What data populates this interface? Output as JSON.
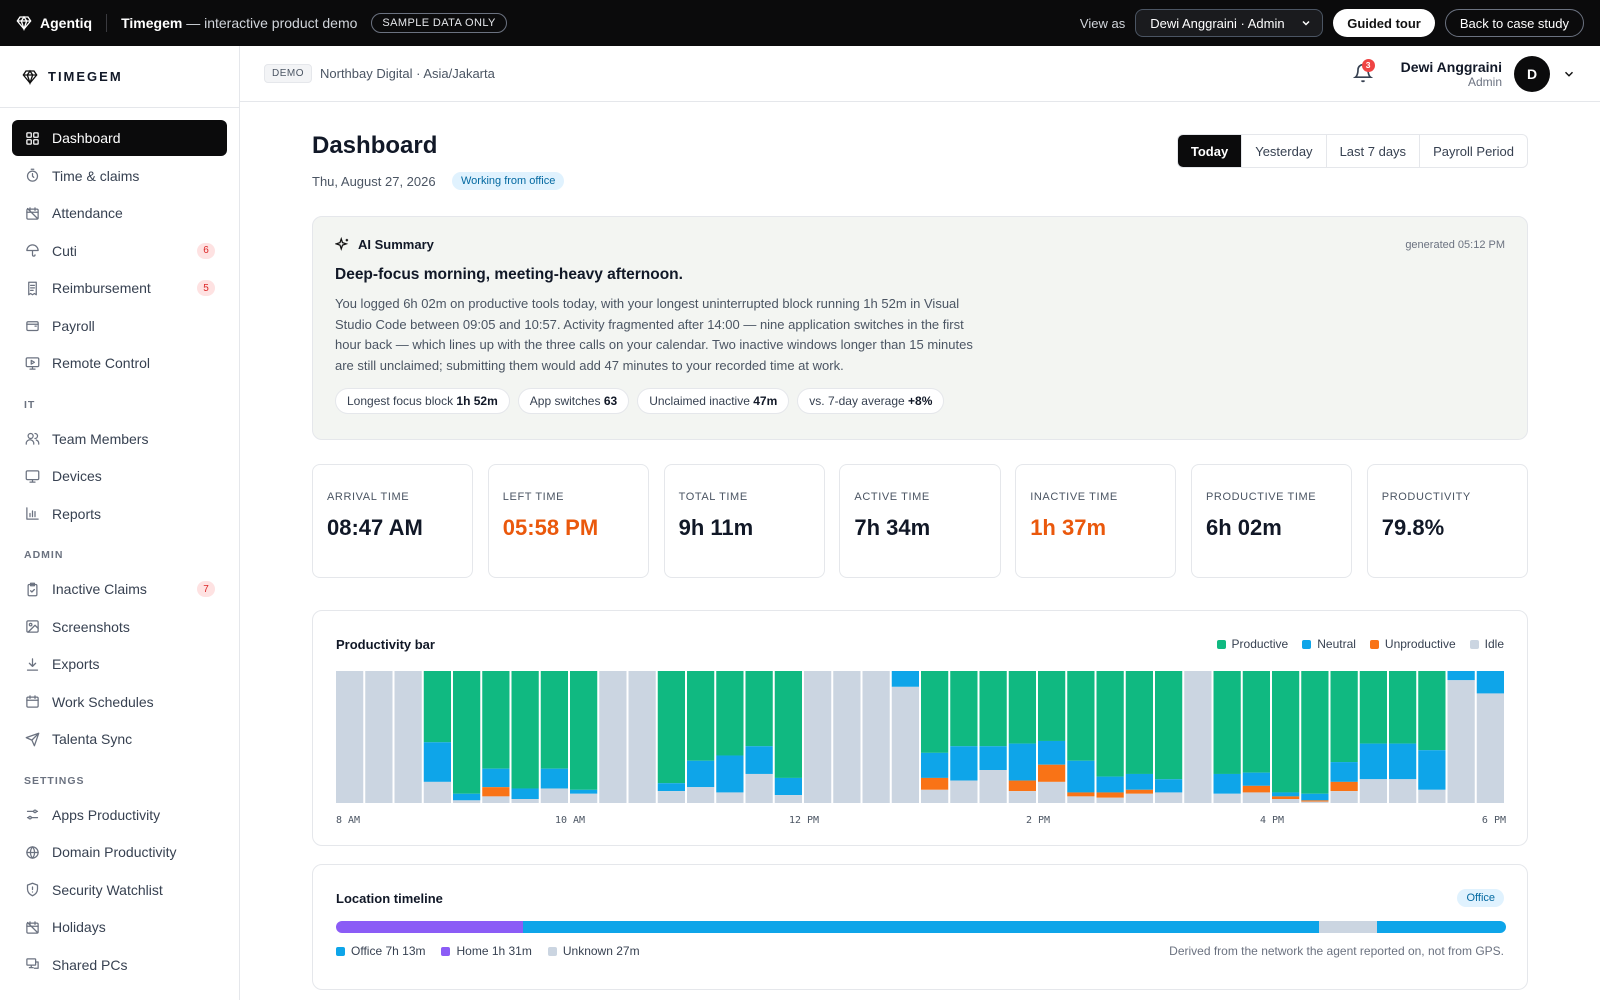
{
  "topbar": {
    "brand": "Agentiq",
    "demo_title_bold": "Timegem",
    "demo_title_rest": " — interactive product demo",
    "sample_pill": "SAMPLE DATA ONLY",
    "view_as_label": "View as",
    "view_as_value": "Dewi Anggraini · Admin",
    "guided_tour": "Guided tour",
    "back": "Back to case study"
  },
  "sidebar": {
    "logo": "TIMEGEM",
    "main_items": [
      {
        "label": "Dashboard",
        "icon": "grid-icon",
        "active": true
      },
      {
        "label": "Time & claims",
        "icon": "stopwatch-icon"
      },
      {
        "label": "Attendance",
        "icon": "calendar-off-icon"
      },
      {
        "label": "Cuti",
        "icon": "umbrella-icon",
        "badge": "6"
      },
      {
        "label": "Reimbursement",
        "icon": "receipt-icon",
        "badge": "5"
      },
      {
        "label": "Payroll",
        "icon": "wallet-icon"
      },
      {
        "label": "Remote Control",
        "icon": "monitor-play-icon"
      }
    ],
    "it_label": "IT",
    "it_items": [
      {
        "label": "Team Members",
        "icon": "users-icon"
      },
      {
        "label": "Devices",
        "icon": "monitor-icon"
      },
      {
        "label": "Reports",
        "icon": "chart-icon"
      }
    ],
    "admin_label": "ADMIN",
    "admin_items": [
      {
        "label": "Inactive Claims",
        "icon": "clipboard-check-icon",
        "badge": "7"
      },
      {
        "label": "Screenshots",
        "icon": "image-icon"
      },
      {
        "label": "Exports",
        "icon": "download-icon"
      },
      {
        "label": "Work Schedules",
        "icon": "calendar-icon"
      },
      {
        "label": "Talenta Sync",
        "icon": "send-icon"
      }
    ],
    "settings_label": "SETTINGS",
    "settings_items": [
      {
        "label": "Apps Productivity",
        "icon": "sliders-icon"
      },
      {
        "label": "Domain Productivity",
        "icon": "globe-icon"
      },
      {
        "label": "Security Watchlist",
        "icon": "shield-icon"
      },
      {
        "label": "Holidays",
        "icon": "calendar-off-icon"
      },
      {
        "label": "Shared PCs",
        "icon": "shared-pc-icon"
      }
    ]
  },
  "header": {
    "demo_chip": "DEMO",
    "org": "Northbay Digital · Asia/Jakarta",
    "notifications": "3",
    "user_name": "Dewi Anggraini",
    "user_role": "Admin",
    "avatar": "D"
  },
  "page": {
    "title": "Dashboard",
    "date": "Thu, August 27, 2026",
    "status": "Working from office",
    "ranges": [
      "Today",
      "Yesterday",
      "Last 7 days",
      "Payroll Period"
    ],
    "active_range": 0
  },
  "ai": {
    "heading": "AI Summary",
    "generated": "generated 05:12 PM",
    "title": "Deep-focus morning, meeting-heavy afternoon.",
    "body": "You logged 6h 02m on productive tools today, with your longest uninterrupted block running 1h 52m in Visual Studio Code between 09:05 and 10:57. Activity fragmented after 14:00 — nine application switches in the first hour back — which lines up with the three calls on your calendar. Two inactive windows longer than 15 minutes are still unclaimed; submitting them would add 47 minutes to your recorded time at work.",
    "chips": [
      {
        "label": "Longest focus block",
        "value": "1h 52m"
      },
      {
        "label": "App switches",
        "value": "63"
      },
      {
        "label": "Unclaimed inactive",
        "value": "47m"
      },
      {
        "label": "vs. 7-day average",
        "value": "+8%"
      }
    ]
  },
  "kpis": [
    {
      "label": "ARRIVAL TIME",
      "value": "08:47 AM"
    },
    {
      "label": "LEFT TIME",
      "value": "05:58 PM",
      "warn": true
    },
    {
      "label": "TOTAL TIME",
      "value": "9h 11m"
    },
    {
      "label": "ACTIVE TIME",
      "value": "7h 34m"
    },
    {
      "label": "INACTIVE TIME",
      "value": "1h 37m",
      "warn": true
    },
    {
      "label": "PRODUCTIVE TIME",
      "value": "6h 02m"
    },
    {
      "label": "PRODUCTIVITY",
      "value": "79.8%"
    }
  ],
  "chart_data": {
    "type": "bar",
    "stacked": true,
    "title": "Productivity bar",
    "interval_minutes": 15,
    "x_start": "8 AM",
    "x_end": "6 PM",
    "x_ticks": [
      "8 AM",
      "10 AM",
      "12 PM",
      "2 PM",
      "4 PM",
      "6 PM"
    ],
    "legend_position": "top-right",
    "series": [
      {
        "name": "Productive",
        "color": "#10b981",
        "values": [
          0,
          0,
          0,
          54,
          93,
          74,
          89,
          74,
          90,
          0,
          0,
          85,
          68,
          64,
          57,
          81,
          0,
          0,
          0,
          0,
          62,
          57,
          57,
          55,
          53,
          68,
          80,
          78,
          82,
          0,
          78,
          77,
          92,
          93,
          69,
          55,
          55,
          60,
          0,
          0
        ]
      },
      {
        "name": "Neutral",
        "color": "#0ea5e9",
        "values": [
          0,
          0,
          0,
          30,
          5,
          14,
          8,
          15,
          3,
          0,
          0,
          6,
          20,
          28,
          21,
          13,
          0,
          0,
          0,
          12,
          19,
          26,
          18,
          28,
          18,
          24,
          12,
          12,
          10,
          0,
          15,
          10,
          3,
          5,
          15,
          27,
          27,
          30,
          7,
          17
        ]
      },
      {
        "name": "Unproductive",
        "color": "#f97316",
        "values": [
          0,
          0,
          0,
          0,
          0,
          7,
          0,
          0,
          0,
          0,
          0,
          0,
          0,
          0,
          0,
          0,
          0,
          0,
          0,
          0,
          9,
          0,
          0,
          8,
          13,
          3,
          4,
          3,
          0,
          0,
          0,
          5,
          2,
          1,
          7,
          0,
          0,
          0,
          0,
          0
        ]
      },
      {
        "name": "Idle",
        "color": "#cbd5e1",
        "values": [
          100,
          100,
          100,
          16,
          2,
          5,
          3,
          11,
          7,
          100,
          100,
          9,
          12,
          8,
          22,
          6,
          100,
          100,
          100,
          88,
          10,
          17,
          25,
          9,
          16,
          5,
          4,
          7,
          8,
          100,
          7,
          8,
          3,
          1,
          9,
          18,
          18,
          10,
          93,
          83
        ]
      }
    ]
  },
  "location": {
    "title": "Location timeline",
    "chip": "Office",
    "segments": [
      {
        "label": "Home",
        "share": 0.16,
        "color": "#8b5cf6"
      },
      {
        "label": "Office",
        "share": 0.68,
        "color": "#0ea5e9"
      },
      {
        "label": "Unknown",
        "share": 0.05,
        "color": "#cbd5e1"
      },
      {
        "label": "Office",
        "share": 0.11,
        "color": "#0ea5e9"
      }
    ],
    "legend": [
      {
        "label": "Office 7h 13m",
        "color": "#0ea5e9"
      },
      {
        "label": "Home 1h 31m",
        "color": "#8b5cf6"
      },
      {
        "label": "Unknown 27m",
        "color": "#cbd5e1"
      }
    ],
    "note": "Derived from the network the agent reported on, not from GPS."
  }
}
